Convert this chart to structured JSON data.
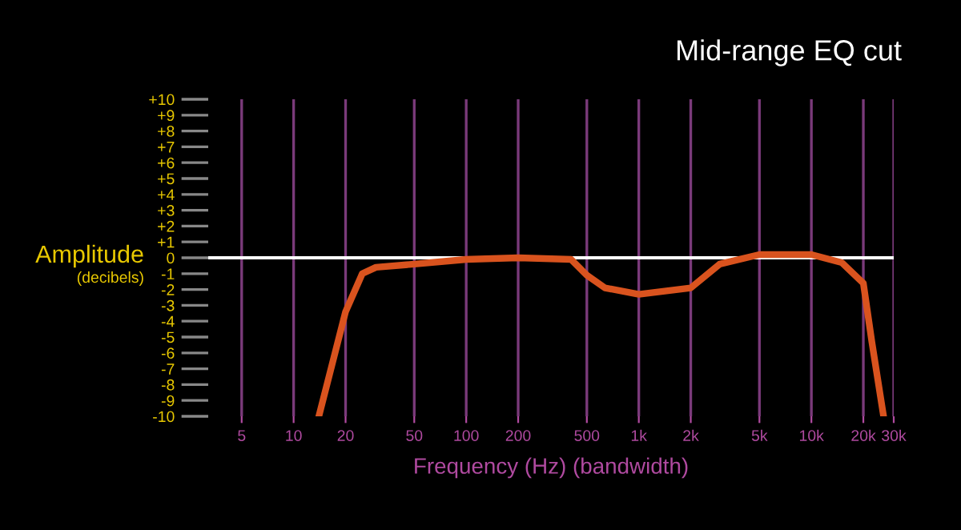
{
  "chart_data": {
    "type": "line",
    "title": "Mid-range EQ cut",
    "xlabel": "Frequency (Hz) (bandwidth)",
    "ylabel": "Amplitude\n(decibels)",
    "series": [
      {
        "color": "#d9531e",
        "x": [
          14,
          20,
          25,
          30,
          50,
          100,
          200,
          405,
          500,
          637,
          1000,
          2000,
          2940,
          5000,
          10000,
          15000,
          20000,
          22400,
          26200
        ],
        "values": [
          -10,
          -3.4,
          -1.0,
          -0.6,
          -0.4,
          -0.1,
          0,
          -0.1,
          -1.1,
          -1.9,
          -2.3,
          -1.9,
          -0.4,
          0.2,
          0.2,
          -0.3,
          -1.6,
          -5.3,
          -10
        ]
      }
    ],
    "xlim": [
      3.2,
      30000
    ],
    "xticks": [
      5,
      10,
      20,
      50,
      100,
      200,
      500,
      {
        "value": 1000,
        "label": "1k"
      },
      {
        "value": 2000,
        "label": "2k"
      },
      {
        "value": 5000,
        "label": "5k"
      },
      {
        "value": 10000,
        "label": "10k"
      },
      {
        "value": 20000,
        "label": "20k"
      },
      {
        "value": 30000,
        "label": "30k"
      }
    ],
    "ylim": [
      -10,
      10
    ],
    "yticks": [
      {
        "value": 10,
        "label": "+10"
      },
      {
        "value": 9,
        "label": "+9"
      },
      {
        "value": 8,
        "label": "+8"
      },
      {
        "value": 7,
        "label": "+7"
      },
      {
        "value": 6,
        "label": "+6"
      },
      {
        "value": 5,
        "label": "+5"
      },
      {
        "value": 4,
        "label": "+4"
      },
      {
        "value": 3,
        "label": "+3"
      },
      {
        "value": 2,
        "label": "+2"
      },
      {
        "value": 1,
        "label": "+1"
      },
      0,
      -1,
      -2,
      -3,
      -4,
      -5,
      -6,
      -7,
      -8,
      -9,
      -10
    ],
    "ref_lines": [
      {
        "axis": "y",
        "value": 0,
        "color": "#ffffff"
      }
    ],
    "log": "x",
    "grid": "x",
    "legend": false,
    "line_style": "solid",
    "marker": "none"
  }
}
